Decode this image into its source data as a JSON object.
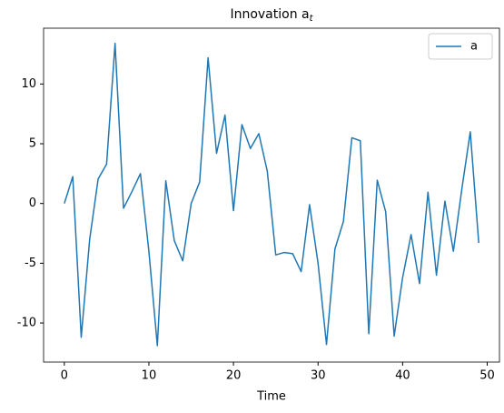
{
  "chart_data": {
    "type": "line",
    "title": {
      "text": "Innovation a",
      "subscript": "t"
    },
    "xlabel": "Time",
    "x": [
      0,
      1,
      2,
      3,
      4,
      5,
      6,
      7,
      8,
      9,
      10,
      11,
      12,
      13,
      14,
      15,
      16,
      17,
      18,
      19,
      20,
      21,
      22,
      23,
      24,
      25,
      26,
      27,
      28,
      29,
      30,
      31,
      32,
      33,
      34,
      35,
      36,
      37,
      38,
      39,
      40,
      41,
      42,
      43,
      44,
      45,
      46,
      47,
      48,
      49
    ],
    "series": [
      {
        "name": "a",
        "color": "#1f77b4",
        "values": [
          0,
          2.25,
          -11.2,
          -3,
          2.05,
          3.3,
          13.4,
          -0.4,
          1.0,
          2.5,
          -4.0,
          -11.9,
          1.9,
          -3.1,
          -4.8,
          0.0,
          1.8,
          12.2,
          4.2,
          7.4,
          -0.6,
          6.6,
          4.6,
          5.85,
          2.7,
          -4.3,
          -4.1,
          -4.2,
          -5.7,
          -0.1,
          -5.0,
          -11.8,
          -3.8,
          -1.5,
          5.5,
          5.25,
          -10.9,
          1.95,
          -0.7,
          -11.1,
          -6.2,
          -2.6,
          -6.7,
          0.95,
          -6.0,
          0.2,
          -4.0,
          1.2,
          6.0,
          -3.3
        ]
      }
    ],
    "xlim": [
      -2.45,
      51.45
    ],
    "ylim": [
      -13.27,
      14.67
    ],
    "xticks": [
      0,
      10,
      20,
      30,
      40,
      50
    ],
    "yticks": [
      -10,
      -5,
      0,
      5,
      10
    ],
    "grid": false,
    "legend": "upper right"
  }
}
